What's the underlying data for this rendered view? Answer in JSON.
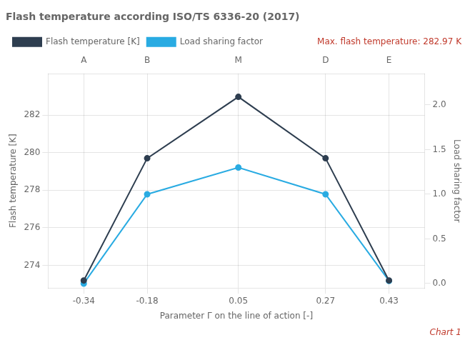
{
  "chart_data": {
    "type": "line",
    "title": "Flash temperature according ISO/TS 6336-20 (2017)",
    "x": [
      -0.34,
      -0.18,
      0.05,
      0.27,
      0.43
    ],
    "xlabel": "Parameter Γ on the line of action [-]",
    "ylabel": "Flash temperature [K]",
    "y2label": "Load sharing factor",
    "xlim": [
      -0.43,
      0.52
    ],
    "xticks": [
      -0.34,
      -0.18,
      0.05,
      0.27,
      0.43
    ],
    "ylim": [
      272.8,
      284.2
    ],
    "yticks": [
      274,
      276,
      278,
      280,
      282
    ],
    "y2lim": [
      -0.05,
      2.35
    ],
    "y2ticks": [
      {
        "value": 0,
        "label": "0.0"
      },
      {
        "value": 0.5,
        "label": "0.5"
      },
      {
        "value": 1,
        "label": "1.0"
      },
      {
        "value": 1.5,
        "label": "1.5"
      },
      {
        "value": 2,
        "label": "2.0"
      }
    ],
    "grid": true,
    "legend": "upper left",
    "series": [
      {
        "name": "Flash temperature [K]",
        "color": "#2e3e50",
        "marker": "circle",
        "values": [
          273.2,
          279.7,
          282.97,
          279.7,
          273.2
        ]
      },
      {
        "name": "Load sharing factor",
        "color": "#29abe2",
        "marker": "circle",
        "axis": "y2",
        "values": [
          0.0,
          1.0,
          1.3,
          1.0,
          0.03
        ]
      }
    ],
    "annotations": [
      {
        "text": "A",
        "x": -0.34
      },
      {
        "text": "B",
        "x": -0.18
      },
      {
        "text": "M",
        "x": 0.05
      },
      {
        "text": "D",
        "x": 0.27
      },
      {
        "text": "E",
        "x": 0.43
      },
      {
        "text": "Max. flash temperature: 282.97 K",
        "color": "#c0392b"
      },
      {
        "text": "Chart 1",
        "color": "#c0392b"
      }
    ]
  }
}
